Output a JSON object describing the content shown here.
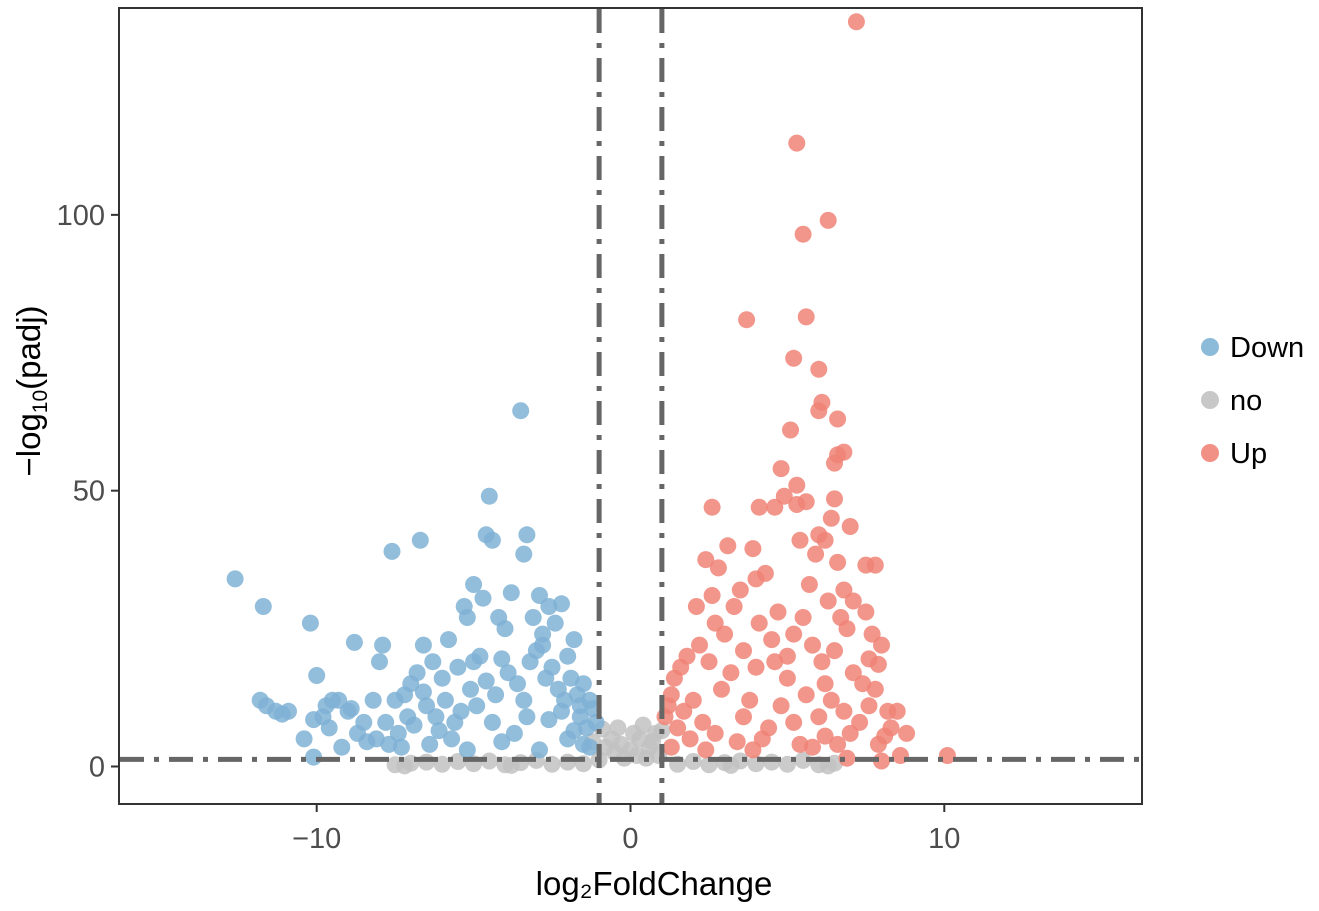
{
  "chart_data": {
    "type": "scatter",
    "title": "",
    "xlabel": "log₂FoldChange",
    "ylabel": {
      "prefix": "−log",
      "subscript": "10",
      "suffix": "(padj)"
    },
    "xlim": [
      -16.3,
      16.3
    ],
    "ylim": [
      -6.8,
      137.5
    ],
    "x_ticks": [
      -10,
      0,
      10
    ],
    "x_tick_labels": [
      "−10",
      "0",
      "10"
    ],
    "y_ticks": [
      0,
      50,
      100
    ],
    "y_tick_labels": [
      "0",
      "50",
      "100"
    ],
    "grid": false,
    "legend_position": "right",
    "thresholds": {
      "log2fc": [
        -1,
        1
      ],
      "neg_log10_padj": 1.3
    },
    "series": [
      {
        "name": "Down",
        "color": "#7fb2d5",
        "points": [
          [
            -12.6,
            34
          ],
          [
            -11.7,
            29
          ],
          [
            -10.2,
            26
          ],
          [
            -11.8,
            12
          ],
          [
            -11.6,
            11
          ],
          [
            -11.3,
            10
          ],
          [
            -11.1,
            9.5
          ],
          [
            -10.9,
            10
          ],
          [
            -10.4,
            5
          ],
          [
            -10.1,
            8.5
          ],
          [
            -10.0,
            16.5
          ],
          [
            -10.1,
            1.7
          ],
          [
            -9.8,
            9
          ],
          [
            -9.7,
            11
          ],
          [
            -9.5,
            12
          ],
          [
            -9.3,
            12
          ],
          [
            -9.6,
            7
          ],
          [
            -9.0,
            10
          ],
          [
            -8.8,
            22.5
          ],
          [
            -8.5,
            8
          ],
          [
            -8.7,
            6
          ],
          [
            -8.2,
            12
          ],
          [
            -8.1,
            5
          ],
          [
            -8.0,
            19
          ],
          [
            -7.9,
            22
          ],
          [
            -7.6,
            39
          ],
          [
            -7.5,
            12
          ],
          [
            -7.2,
            13
          ],
          [
            -7.0,
            15
          ],
          [
            -6.8,
            17
          ],
          [
            -6.7,
            41
          ],
          [
            -6.6,
            22
          ],
          [
            -6.3,
            19
          ],
          [
            -6.0,
            16
          ],
          [
            -5.8,
            23
          ],
          [
            -5.5,
            18
          ],
          [
            -5.3,
            29
          ],
          [
            -5.2,
            27
          ],
          [
            -5.0,
            33
          ],
          [
            -4.8,
            20
          ],
          [
            -4.7,
            30.5
          ],
          [
            -4.5,
            49
          ],
          [
            -4.6,
            42
          ],
          [
            -4.4,
            41
          ],
          [
            -4.2,
            27
          ],
          [
            -4.0,
            25
          ],
          [
            -3.8,
            31.5
          ],
          [
            -3.5,
            64.5
          ],
          [
            -3.4,
            38.5
          ],
          [
            -3.3,
            42
          ],
          [
            -3.1,
            27
          ],
          [
            -2.9,
            31
          ],
          [
            -2.8,
            24
          ],
          [
            -2.6,
            29
          ],
          [
            -2.4,
            26
          ],
          [
            -2.2,
            29.5
          ],
          [
            -2.0,
            20
          ],
          [
            -1.8,
            23
          ],
          [
            -1.5,
            15
          ],
          [
            -1.3,
            12
          ],
          [
            -1.1,
            8
          ],
          [
            -1.2,
            10.5
          ],
          [
            -7.8,
            8
          ],
          [
            -7.4,
            6
          ],
          [
            -7.1,
            9
          ],
          [
            -6.9,
            7.5
          ],
          [
            -6.5,
            11
          ],
          [
            -6.2,
            9
          ],
          [
            -5.9,
            12
          ],
          [
            -5.6,
            8
          ],
          [
            -5.4,
            10
          ],
          [
            -5.1,
            14
          ],
          [
            -4.9,
            11
          ],
          [
            -4.3,
            13
          ],
          [
            -3.9,
            17
          ],
          [
            -3.6,
            15
          ],
          [
            -3.2,
            19
          ],
          [
            -3.0,
            21
          ],
          [
            -2.7,
            16
          ],
          [
            -2.5,
            18
          ],
          [
            -2.3,
            14
          ],
          [
            -2.1,
            12
          ],
          [
            -1.9,
            16
          ],
          [
            -1.7,
            13
          ],
          [
            -1.6,
            9
          ],
          [
            -1.4,
            7
          ],
          [
            -8.4,
            4.5
          ],
          [
            -7.7,
            4
          ],
          [
            -7.3,
            3.5
          ],
          [
            -6.4,
            4
          ],
          [
            -5.7,
            5
          ],
          [
            -4.1,
            4.5
          ],
          [
            -3.7,
            6
          ],
          [
            -2.0,
            5
          ],
          [
            -1.5,
            4
          ],
          [
            -6.1,
            6.5
          ],
          [
            -4.4,
            8
          ],
          [
            -3.3,
            9
          ],
          [
            -2.6,
            8.5
          ],
          [
            -1.8,
            6.5
          ],
          [
            -9.2,
            3.5
          ],
          [
            -5.2,
            3
          ],
          [
            -2.9,
            3
          ],
          [
            -1.3,
            3.5
          ],
          [
            -8.9,
            10.5
          ],
          [
            -6.6,
            13.5
          ],
          [
            -4.6,
            15.5
          ],
          [
            -3.4,
            12
          ],
          [
            -2.2,
            10
          ],
          [
            -1.6,
            11
          ],
          [
            -5.0,
            19
          ],
          [
            -2.8,
            22
          ],
          [
            -4.1,
            19.5
          ]
        ]
      },
      {
        "name": "no",
        "color": "#c2c2c2",
        "points": [
          [
            -7.5,
            0.3
          ],
          [
            -7.0,
            0.6
          ],
          [
            -6.5,
            0.8
          ],
          [
            -6.0,
            0.4
          ],
          [
            -5.5,
            0.9
          ],
          [
            -5.0,
            0.5
          ],
          [
            -4.5,
            1.0
          ],
          [
            -4.0,
            0.3
          ],
          [
            -3.5,
            0.7
          ],
          [
            -3.0,
            1.1
          ],
          [
            -2.5,
            0.4
          ],
          [
            -2.0,
            0.8
          ],
          [
            -1.5,
            0.5
          ],
          [
            -1.0,
            1.2
          ],
          [
            -0.8,
            3.5
          ],
          [
            -0.6,
            5
          ],
          [
            -0.5,
            2.5
          ],
          [
            -0.3,
            4
          ],
          [
            -0.2,
            1.5
          ],
          [
            0.0,
            3
          ],
          [
            0.2,
            2
          ],
          [
            0.3,
            5
          ],
          [
            0.5,
            1.5
          ],
          [
            0.6,
            3.5
          ],
          [
            0.8,
            6
          ],
          [
            0.9,
            2
          ],
          [
            1.0,
            6.5
          ],
          [
            1.5,
            0.4
          ],
          [
            2.0,
            0.9
          ],
          [
            2.5,
            0.3
          ],
          [
            3.0,
            0.7
          ],
          [
            3.5,
            1.0
          ],
          [
            4.0,
            0.5
          ],
          [
            4.5,
            0.8
          ],
          [
            5.0,
            0.4
          ],
          [
            5.5,
            1.1
          ],
          [
            6.0,
            0.3
          ],
          [
            6.5,
            0.6
          ],
          [
            -1.2,
            4.5
          ],
          [
            -0.9,
            6.8
          ],
          [
            -0.4,
            7
          ],
          [
            0.1,
            6
          ],
          [
            0.4,
            7.5
          ],
          [
            0.7,
            4.5
          ],
          [
            -7.2,
            0.1
          ],
          [
            -3.8,
            0.2
          ],
          [
            3.2,
            0.2
          ],
          [
            6.3,
            0.1
          ]
        ]
      },
      {
        "name": "Up",
        "color": "#f08477",
        "points": [
          [
            7.2,
            135
          ],
          [
            5.3,
            113
          ],
          [
            6.3,
            99
          ],
          [
            5.5,
            96.5
          ],
          [
            3.7,
            81
          ],
          [
            5.6,
            81.5
          ],
          [
            5.2,
            74
          ],
          [
            6.0,
            72
          ],
          [
            6.1,
            66
          ],
          [
            6.0,
            64.5
          ],
          [
            6.6,
            63
          ],
          [
            5.1,
            61
          ],
          [
            6.8,
            57
          ],
          [
            6.6,
            56.5
          ],
          [
            6.5,
            55
          ],
          [
            4.8,
            54
          ],
          [
            5.3,
            51
          ],
          [
            4.9,
            49
          ],
          [
            6.5,
            48.5
          ],
          [
            5.6,
            48
          ],
          [
            5.3,
            47.5
          ],
          [
            4.1,
            47
          ],
          [
            2.6,
            47
          ],
          [
            4.6,
            47
          ],
          [
            7.0,
            43.5
          ],
          [
            6.0,
            42
          ],
          [
            6.4,
            45
          ],
          [
            6.2,
            41
          ],
          [
            5.4,
            41
          ],
          [
            6.6,
            37
          ],
          [
            7.5,
            36.5
          ],
          [
            7.8,
            36.5
          ],
          [
            3.1,
            40
          ],
          [
            3.9,
            39.5
          ],
          [
            5.9,
            38.5
          ],
          [
            2.8,
            36
          ],
          [
            2.4,
            37.5
          ],
          [
            4.3,
            35
          ],
          [
            5.7,
            33
          ],
          [
            4.0,
            34
          ],
          [
            3.5,
            32
          ],
          [
            6.8,
            32
          ],
          [
            7.1,
            30
          ],
          [
            6.3,
            30
          ],
          [
            7.5,
            28
          ],
          [
            2.6,
            31
          ],
          [
            3.3,
            29
          ],
          [
            2.1,
            29
          ],
          [
            4.7,
            28
          ],
          [
            5.5,
            27
          ],
          [
            6.9,
            25
          ],
          [
            7.7,
            24
          ],
          [
            8.0,
            22
          ],
          [
            3.0,
            24
          ],
          [
            4.5,
            23
          ],
          [
            5.8,
            22
          ],
          [
            6.5,
            21
          ],
          [
            2.2,
            22
          ],
          [
            1.8,
            20
          ],
          [
            1.6,
            18
          ],
          [
            1.4,
            16
          ],
          [
            1.3,
            13
          ],
          [
            1.2,
            11
          ],
          [
            1.1,
            9
          ],
          [
            2.5,
            19
          ],
          [
            3.2,
            17
          ],
          [
            4.0,
            18
          ],
          [
            5.0,
            16
          ],
          [
            6.1,
            19
          ],
          [
            7.1,
            17
          ],
          [
            7.4,
            15
          ],
          [
            7.8,
            14
          ],
          [
            8.2,
            10
          ],
          [
            8.5,
            10
          ],
          [
            8.3,
            7
          ],
          [
            8.1,
            5.5
          ],
          [
            8.8,
            6
          ],
          [
            8.6,
            2
          ],
          [
            10.1,
            2
          ],
          [
            8.0,
            1
          ],
          [
            6.9,
            1.5
          ],
          [
            3.8,
            12
          ],
          [
            4.8,
            11
          ],
          [
            5.6,
            13
          ],
          [
            6.4,
            12
          ],
          [
            2.9,
            14
          ],
          [
            2.0,
            12
          ],
          [
            1.7,
            10
          ],
          [
            1.5,
            7
          ],
          [
            2.3,
            8
          ],
          [
            3.6,
            9
          ],
          [
            4.4,
            7
          ],
          [
            5.2,
            8
          ],
          [
            6.0,
            9
          ],
          [
            6.8,
            10
          ],
          [
            7.3,
            8
          ],
          [
            7.6,
            11
          ],
          [
            1.9,
            5
          ],
          [
            2.7,
            6
          ],
          [
            3.4,
            4.5
          ],
          [
            4.2,
            5
          ],
          [
            5.4,
            4
          ],
          [
            6.2,
            5.5
          ],
          [
            7.0,
            6
          ],
          [
            1.3,
            3.5
          ],
          [
            2.4,
            3
          ],
          [
            3.9,
            3
          ],
          [
            5.8,
            3.5
          ],
          [
            6.6,
            4
          ],
          [
            7.9,
            4
          ],
          [
            4.6,
            19
          ],
          [
            3.6,
            21
          ],
          [
            5.2,
            24
          ],
          [
            2.7,
            26
          ],
          [
            6.7,
            27
          ],
          [
            4.1,
            26
          ],
          [
            7.9,
            18.5
          ],
          [
            7.6,
            19.5
          ],
          [
            6.2,
            15
          ],
          [
            5.0,
            20
          ]
        ]
      }
    ]
  }
}
